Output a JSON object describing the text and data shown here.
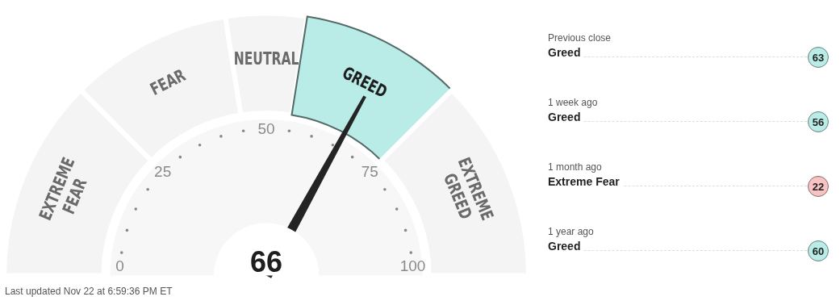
{
  "chart_data": [
    {
      "type": "donut",
      "categories": [
        "EXTREME FEAR",
        "FEAR",
        "NEUTRAL",
        "GREED",
        "EXTREME GREED"
      ],
      "values": [
        25,
        20,
        10,
        20,
        25
      ],
      "colors": [
        "#f4f4f4",
        "#f4f4f4",
        "#f4f4f4",
        "#b9ece6",
        "#f4f4f4"
      ],
      "needle": "GREED",
      "annotations": [
        "66",
        "0",
        "25",
        "50",
        "75",
        "100",
        "Last updated Nov 22 at 6:59:36 PM ET"
      ]
    },
    {
      "type": "other",
      "colors": [
        "#b9ece6",
        "#b9ece6",
        "#f8c3c3",
        "#b9ece6"
      ],
      "annotations": [
        "Previous close",
        "Greed",
        "63",
        "1 week ago",
        "Greed",
        "56",
        "1 month ago",
        "Extreme Fear",
        "22",
        "1 year ago",
        "Greed",
        "60"
      ]
    }
  ]
}
